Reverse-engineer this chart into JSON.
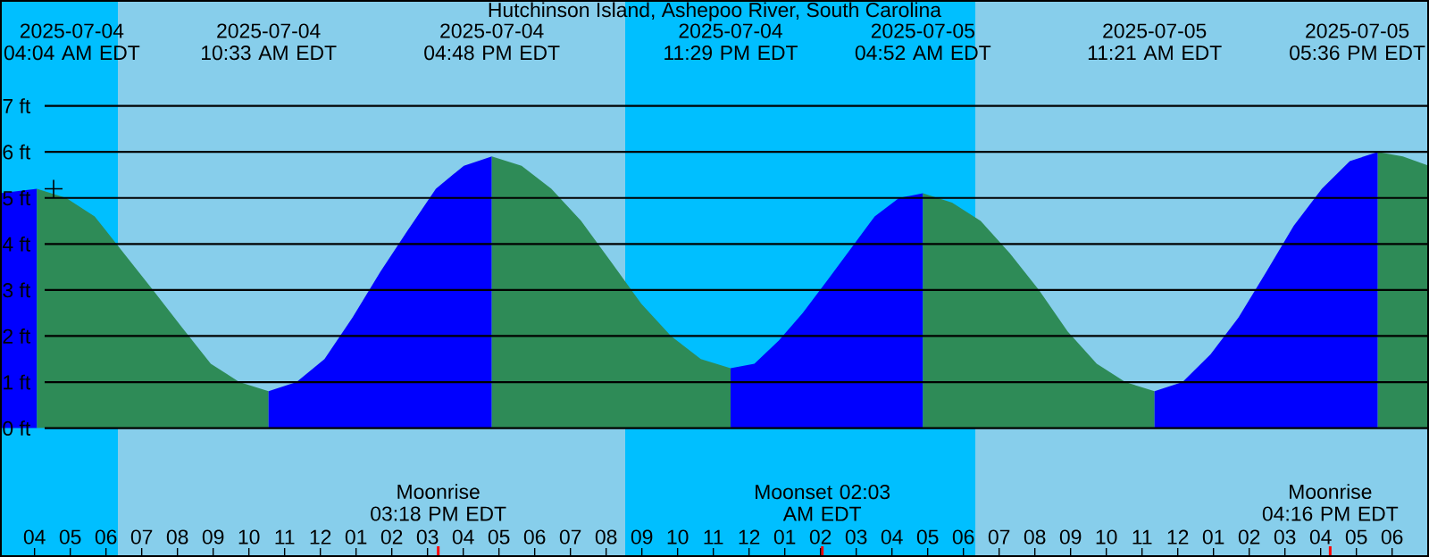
{
  "chart_data": {
    "type": "area",
    "title": "Hutchinson Island, Ashepoo River, South Carolina",
    "xlim": [
      "2025-07-04T03:02",
      "2025-07-05T19:02"
    ],
    "ylim": [
      -2.8,
      9.3
    ],
    "xticks": [
      {
        "value": "2025-07-04T04:00",
        "label": "04"
      },
      {
        "value": "2025-07-04T05:00",
        "label": "05"
      },
      {
        "value": "2025-07-04T06:00",
        "label": "06"
      },
      {
        "value": "2025-07-04T07:00",
        "label": "07"
      },
      {
        "value": "2025-07-04T08:00",
        "label": "08"
      },
      {
        "value": "2025-07-04T09:00",
        "label": "09"
      },
      {
        "value": "2025-07-04T10:00",
        "label": "10"
      },
      {
        "value": "2025-07-04T11:00",
        "label": "11"
      },
      {
        "value": "2025-07-04T12:00",
        "label": "12"
      },
      {
        "value": "2025-07-04T13:00",
        "label": "01"
      },
      {
        "value": "2025-07-04T14:00",
        "label": "02"
      },
      {
        "value": "2025-07-04T15:00",
        "label": "03"
      },
      {
        "value": "2025-07-04T16:00",
        "label": "04"
      },
      {
        "value": "2025-07-04T17:00",
        "label": "05"
      },
      {
        "value": "2025-07-04T18:00",
        "label": "06"
      },
      {
        "value": "2025-07-04T19:00",
        "label": "07"
      },
      {
        "value": "2025-07-04T20:00",
        "label": "08"
      },
      {
        "value": "2025-07-04T21:00",
        "label": "09"
      },
      {
        "value": "2025-07-04T22:00",
        "label": "10"
      },
      {
        "value": "2025-07-04T23:00",
        "label": "11"
      },
      {
        "value": "2025-07-05T00:00",
        "label": "12"
      },
      {
        "value": "2025-07-05T01:00",
        "label": "01"
      },
      {
        "value": "2025-07-05T02:00",
        "label": "02"
      },
      {
        "value": "2025-07-05T03:00",
        "label": "03"
      },
      {
        "value": "2025-07-05T04:00",
        "label": "04"
      },
      {
        "value": "2025-07-05T05:00",
        "label": "05"
      },
      {
        "value": "2025-07-05T06:00",
        "label": "06"
      },
      {
        "value": "2025-07-05T07:00",
        "label": "07"
      },
      {
        "value": "2025-07-05T08:00",
        "label": "08"
      },
      {
        "value": "2025-07-05T09:00",
        "label": "09"
      },
      {
        "value": "2025-07-05T10:00",
        "label": "10"
      },
      {
        "value": "2025-07-05T11:00",
        "label": "11"
      },
      {
        "value": "2025-07-05T12:00",
        "label": "12"
      },
      {
        "value": "2025-07-05T13:00",
        "label": "01"
      },
      {
        "value": "2025-07-05T14:00",
        "label": "02"
      },
      {
        "value": "2025-07-05T15:00",
        "label": "03"
      },
      {
        "value": "2025-07-05T16:00",
        "label": "04"
      },
      {
        "value": "2025-07-05T17:00",
        "label": "05"
      },
      {
        "value": "2025-07-05T18:00",
        "label": "06"
      }
    ],
    "yticks": [
      {
        "value": 0,
        "label": "0 ft"
      },
      {
        "value": 1,
        "label": "1 ft"
      },
      {
        "value": 2,
        "label": "2 ft"
      },
      {
        "value": 3,
        "label": "3 ft"
      },
      {
        "value": 4,
        "label": "4 ft"
      },
      {
        "value": 5,
        "label": "5 ft"
      },
      {
        "value": 6,
        "label": "6 ft"
      },
      {
        "value": 7,
        "label": "7 ft"
      }
    ],
    "grid": "y",
    "bands": [
      {
        "axis": "x",
        "from": "2025-07-04T03:02",
        "to": "2025-07-04T06:20",
        "color": "#00bfff"
      },
      {
        "axis": "x",
        "from": "2025-07-04T20:32",
        "to": "2025-07-05T06:20",
        "color": "#00bfff"
      }
    ],
    "ref_lines": [
      {
        "axis": "x",
        "value": "2025-07-04T15:18",
        "label": "Moonrise 03:18 PM EDT",
        "color": "#ff0000"
      },
      {
        "axis": "x",
        "value": "2025-07-05T02:03",
        "label": "Moonset 02:03 AM EDT",
        "color": "#ff0000"
      },
      {
        "axis": "x",
        "value": "2025-07-05T16:16",
        "label": "Moonrise 04:16 PM EDT",
        "color": "#ff0000"
      }
    ],
    "series": [
      {
        "color": "#0000ff",
        "x": [
          "2025-07-04T03:02",
          "2025-07-04T04:04"
        ],
        "values": [
          5.1,
          5.2
        ]
      },
      {
        "color": "#2e8b57",
        "x": [
          "2025-07-04T04:04",
          "2025-07-04T04:53",
          "2025-07-04T05:41",
          "2025-07-04T06:30",
          "2025-07-04T07:19",
          "2025-07-04T08:07",
          "2025-07-04T08:56",
          "2025-07-04T09:44",
          "2025-07-04T10:33"
        ],
        "values": [
          5.2,
          5.0,
          4.6,
          3.8,
          3.0,
          2.2,
          1.4,
          1.0,
          0.8
        ]
      },
      {
        "color": "#0000ff",
        "x": [
          "2025-07-04T10:33",
          "2025-07-04T11:20",
          "2025-07-04T12:07",
          "2025-07-04T12:54",
          "2025-07-04T13:41",
          "2025-07-04T14:27",
          "2025-07-04T15:14",
          "2025-07-04T16:01",
          "2025-07-04T16:48"
        ],
        "values": [
          0.8,
          1.0,
          1.5,
          2.4,
          3.4,
          4.3,
          5.2,
          5.7,
          5.9
        ]
      },
      {
        "color": "#2e8b57",
        "x": [
          "2025-07-04T16:48",
          "2025-07-04T17:38",
          "2025-07-04T18:28",
          "2025-07-04T19:18",
          "2025-07-04T20:09",
          "2025-07-04T20:59",
          "2025-07-04T21:49",
          "2025-07-04T22:39",
          "2025-07-04T23:29"
        ],
        "values": [
          5.9,
          5.7,
          5.2,
          4.5,
          3.6,
          2.7,
          2.0,
          1.5,
          1.3
        ]
      },
      {
        "color": "#0000ff",
        "x": [
          "2025-07-04T23:29",
          "2025-07-05T00:09",
          "2025-07-05T00:50",
          "2025-07-05T01:30",
          "2025-07-05T02:11",
          "2025-07-05T02:51",
          "2025-07-05T03:31",
          "2025-07-05T04:12",
          "2025-07-05T04:52"
        ],
        "values": [
          1.3,
          1.4,
          1.9,
          2.5,
          3.2,
          3.9,
          4.6,
          5.0,
          5.1
        ]
      },
      {
        "color": "#2e8b57",
        "x": [
          "2025-07-05T04:52",
          "2025-07-05T05:41",
          "2025-07-05T06:29",
          "2025-07-05T07:18",
          "2025-07-05T08:07",
          "2025-07-05T08:55",
          "2025-07-05T09:44",
          "2025-07-05T10:32",
          "2025-07-05T11:21"
        ],
        "values": [
          5.1,
          4.9,
          4.5,
          3.8,
          3.0,
          2.1,
          1.4,
          1.0,
          0.8
        ]
      },
      {
        "color": "#0000ff",
        "x": [
          "2025-07-05T11:21",
          "2025-07-05T12:08",
          "2025-07-05T12:55",
          "2025-07-05T13:42",
          "2025-07-05T14:29",
          "2025-07-05T15:15",
          "2025-07-05T16:02",
          "2025-07-05T16:49",
          "2025-07-05T17:36"
        ],
        "values": [
          0.8,
          1.0,
          1.6,
          2.4,
          3.4,
          4.4,
          5.2,
          5.8,
          6.0
        ]
      },
      {
        "color": "#2e8b57",
        "x": [
          "2025-07-05T17:36",
          "2025-07-05T18:18",
          "2025-07-05T19:02"
        ],
        "values": [
          6.0,
          5.9,
          5.7
        ]
      },
      {
        "type": "scatter",
        "marker": "cross",
        "color": "#000000",
        "x": [
          "2025-07-04T04:32"
        ],
        "values": [
          5.2
        ]
      }
    ],
    "annotations": [
      "2025-07-04 04:04 AM EDT",
      "2025-07-04 10:33 AM EDT",
      "2025-07-04 04:48 PM EDT",
      "2025-07-04 11:29 PM EDT",
      "2025-07-05 04:52 AM EDT",
      "2025-07-05 11:21 AM EDT",
      "2025-07-05 05:36 PM EDT"
    ]
  }
}
